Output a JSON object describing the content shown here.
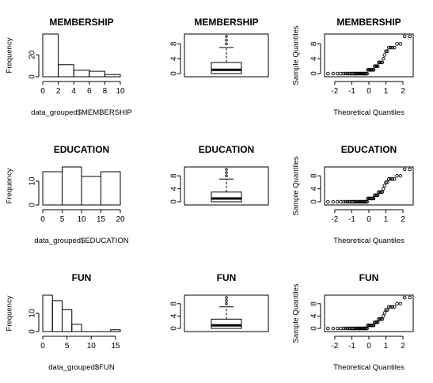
{
  "chart_data": [
    {
      "id": "membership-hist",
      "type": "bar",
      "subtype": "histogram",
      "title": "MEMBERSHIP",
      "xlabel": "data_grouped$MEMBERSHIP",
      "ylabel": "Frequency",
      "bins": [
        [
          0,
          2
        ],
        [
          2,
          4
        ],
        [
          4,
          6
        ],
        [
          6,
          8
        ],
        [
          8,
          10
        ]
      ],
      "values": [
        39,
        11,
        6,
        5,
        2
      ],
      "xlim": [
        0,
        10
      ],
      "ylim": [
        0,
        39
      ],
      "xticks": [
        "0",
        "2",
        "4",
        "6",
        "8",
        "10"
      ],
      "yticks": [
        "0",
        "20"
      ]
    },
    {
      "id": "membership-box",
      "type": "box",
      "title": "MEMBERSHIP",
      "stats": {
        "min": 0,
        "q1": 0,
        "median": 1,
        "q3": 3,
        "whisker_high": 7
      },
      "outliers": [
        8,
        9,
        10
      ],
      "ylim": [
        0,
        10
      ],
      "yticks": [
        "0",
        "4",
        "8"
      ]
    },
    {
      "id": "membership-qq",
      "type": "scatter",
      "subtype": "normal-qq",
      "title": "MEMBERSHIP",
      "xlabel": "Theoretical Quantiles",
      "ylabel": "Sample Quantiles",
      "x": [
        -2.4,
        -2.1,
        -1.85,
        -1.65,
        -1.5,
        -1.38,
        -1.27,
        -1.17,
        -1.08,
        -1.0,
        -0.92,
        -0.85,
        -0.78,
        -0.71,
        -0.64,
        -0.58,
        -0.52,
        -0.46,
        -0.4,
        -0.34,
        -0.28,
        -0.23,
        -0.17,
        -0.11,
        -0.06,
        0.0,
        0.06,
        0.11,
        0.17,
        0.23,
        0.28,
        0.34,
        0.4,
        0.46,
        0.52,
        0.58,
        0.64,
        0.71,
        0.78,
        0.85,
        0.92,
        1.0,
        1.08,
        1.17,
        1.27,
        1.38,
        1.5,
        1.65,
        1.85,
        2.1,
        2.4
      ],
      "y": [
        0,
        0,
        0,
        0,
        0,
        0,
        0,
        0,
        0,
        0,
        0,
        0,
        0,
        0,
        0,
        0,
        0,
        0,
        0,
        0,
        0,
        0,
        0,
        0,
        1,
        1,
        1,
        1,
        1,
        1,
        1,
        2,
        2,
        2,
        2,
        3,
        3,
        3,
        3,
        4,
        5,
        6,
        6,
        7,
        7,
        7,
        7,
        8,
        8,
        10,
        10
      ],
      "xlim": [
        -2.6,
        2.6
      ],
      "ylim": [
        0,
        10
      ],
      "xticks": [
        -2,
        -1,
        0,
        1,
        2
      ],
      "yticks": [
        "0",
        "4",
        "8"
      ]
    },
    {
      "id": "education-hist",
      "type": "bar",
      "subtype": "histogram",
      "title": "EDUCATION",
      "xlabel": "data_grouped$EDUCATION",
      "ylabel": "Frequency",
      "bins": [
        [
          0,
          5
        ],
        [
          5,
          10
        ],
        [
          10,
          15
        ],
        [
          15,
          20
        ]
      ],
      "values": [
        14,
        16,
        12,
        14
      ],
      "xlim": [
        0,
        20
      ],
      "ylim": [
        0,
        16
      ],
      "xticks": [
        "0",
        "5",
        "10",
        "15",
        "20"
      ],
      "yticks": [
        "0",
        "10"
      ]
    },
    {
      "id": "education-box",
      "type": "box",
      "title": "EDUCATION",
      "stats": {
        "min": 0,
        "q1": 0,
        "median": 1,
        "q3": 3,
        "whisker_high": 7
      },
      "outliers": [
        8,
        9,
        10
      ],
      "ylim": [
        0,
        10
      ],
      "yticks": [
        "0",
        "4",
        "8"
      ]
    },
    {
      "id": "education-qq",
      "type": "scatter",
      "subtype": "normal-qq",
      "title": "EDUCATION",
      "xlabel": "Theoretical Quantiles",
      "ylabel": "Sample Quantiles",
      "x": [
        -2.4,
        -2.1,
        -1.85,
        -1.65,
        -1.5,
        -1.38,
        -1.27,
        -1.17,
        -1.08,
        -1.0,
        -0.92,
        -0.85,
        -0.78,
        -0.71,
        -0.64,
        -0.58,
        -0.52,
        -0.46,
        -0.4,
        -0.34,
        -0.28,
        -0.23,
        -0.17,
        -0.11,
        -0.06,
        0.0,
        0.06,
        0.11,
        0.17,
        0.23,
        0.28,
        0.34,
        0.4,
        0.46,
        0.52,
        0.58,
        0.64,
        0.71,
        0.78,
        0.85,
        0.92,
        1.0,
        1.08,
        1.17,
        1.27,
        1.38,
        1.5,
        1.65,
        1.85,
        2.1,
        2.4
      ],
      "y": [
        0,
        0,
        0,
        0,
        0,
        0,
        0,
        0,
        0,
        0,
        0,
        0,
        0,
        0,
        0,
        0,
        0,
        0,
        0,
        0,
        0,
        0,
        0,
        0,
        1,
        1,
        1,
        1,
        1,
        1,
        1,
        2,
        2,
        2,
        2,
        3,
        3,
        3,
        3,
        4,
        5,
        6,
        6,
        7,
        7,
        7,
        7,
        8,
        8,
        10,
        10
      ],
      "xlim": [
        -2.6,
        2.6
      ],
      "ylim": [
        0,
        10
      ],
      "xticks": [
        -2,
        -1,
        0,
        1,
        2
      ],
      "yticks": [
        "0",
        "4",
        "8"
      ]
    },
    {
      "id": "fun-hist",
      "type": "bar",
      "subtype": "histogram",
      "title": "FUN",
      "xlabel": "data_grouped$FUN",
      "ylabel": "Frequency",
      "bins": [
        [
          0,
          2
        ],
        [
          2,
          4
        ],
        [
          4,
          6
        ],
        [
          6,
          8
        ],
        [
          8,
          10
        ],
        [
          10,
          12
        ],
        [
          12,
          14
        ],
        [
          14,
          16
        ]
      ],
      "values": [
        20,
        17,
        12,
        4,
        0,
        0,
        0,
        1
      ],
      "xlim": [
        0,
        16
      ],
      "ylim": [
        0,
        20
      ],
      "xticks": [
        "0",
        "5",
        "10",
        "15"
      ],
      "yticks": [
        "0",
        "10"
      ]
    },
    {
      "id": "fun-box",
      "type": "box",
      "title": "FUN",
      "stats": {
        "min": 0,
        "q1": 0,
        "median": 1,
        "q3": 3,
        "whisker_high": 7
      },
      "outliers": [
        8,
        9,
        10
      ],
      "ylim": [
        0,
        10
      ],
      "yticks": [
        "0",
        "4",
        "8"
      ]
    },
    {
      "id": "fun-qq",
      "type": "scatter",
      "subtype": "normal-qq",
      "title": "FUN",
      "xlabel": "Theoretical Quantiles",
      "ylabel": "Sample Quantiles",
      "x": [
        -2.4,
        -2.1,
        -1.85,
        -1.65,
        -1.5,
        -1.38,
        -1.27,
        -1.17,
        -1.08,
        -1.0,
        -0.92,
        -0.85,
        -0.78,
        -0.71,
        -0.64,
        -0.58,
        -0.52,
        -0.46,
        -0.4,
        -0.34,
        -0.28,
        -0.23,
        -0.17,
        -0.11,
        -0.06,
        0.0,
        0.06,
        0.11,
        0.17,
        0.23,
        0.28,
        0.34,
        0.4,
        0.46,
        0.52,
        0.58,
        0.64,
        0.71,
        0.78,
        0.85,
        0.92,
        1.0,
        1.08,
        1.17,
        1.27,
        1.38,
        1.5,
        1.65,
        1.85,
        2.1,
        2.4
      ],
      "y": [
        0,
        0,
        0,
        0,
        0,
        0,
        0,
        0,
        0,
        0,
        0,
        0,
        0,
        0,
        0,
        0,
        0,
        0,
        0,
        0,
        0,
        0,
        0,
        0,
        1,
        1,
        1,
        1,
        1,
        1,
        1,
        2,
        2,
        2,
        2,
        3,
        3,
        3,
        3,
        4,
        5,
        6,
        6,
        7,
        7,
        7,
        7,
        8,
        8,
        10,
        10
      ],
      "xlim": [
        -2.6,
        2.6
      ],
      "ylim": [
        0,
        10
      ],
      "xticks": [
        -2,
        -1,
        0,
        1,
        2
      ],
      "yticks": [
        "0",
        "4",
        "8"
      ]
    }
  ]
}
